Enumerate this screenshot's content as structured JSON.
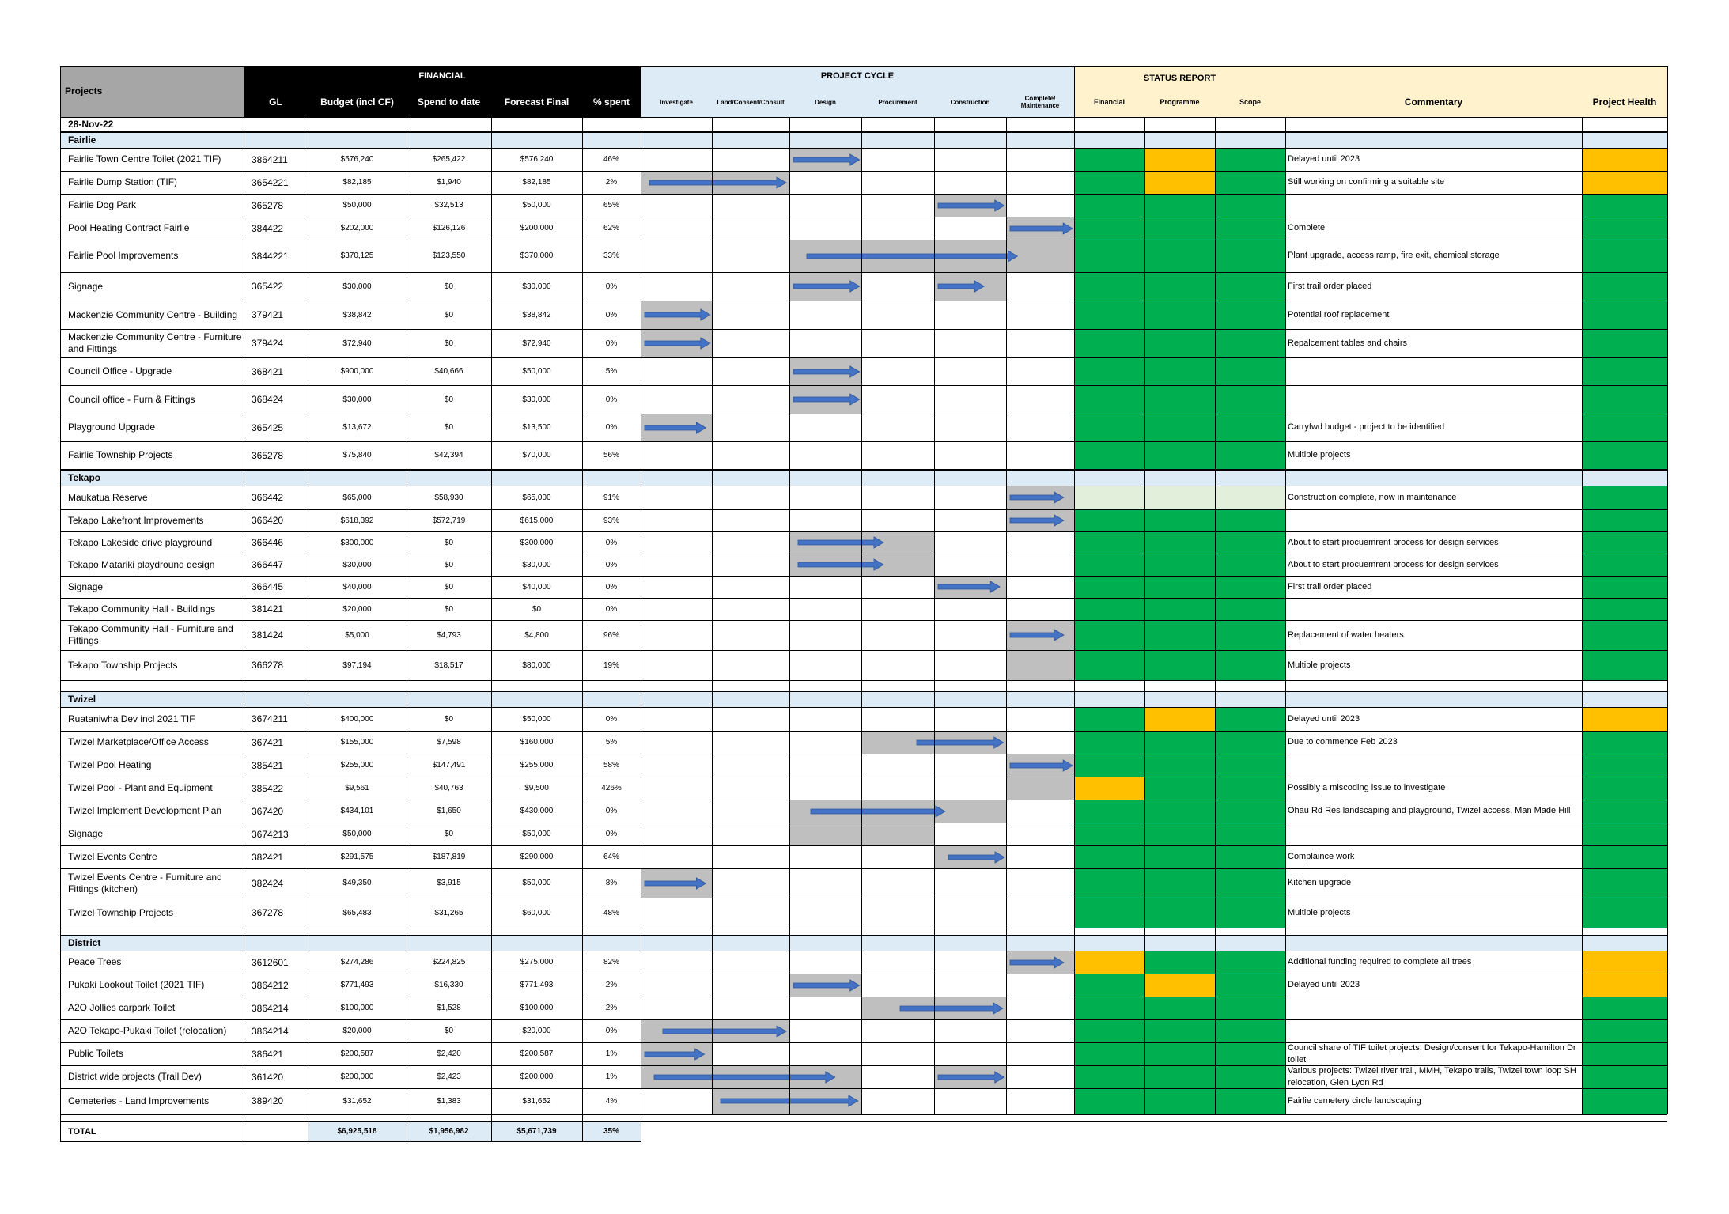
{
  "header": {
    "projects": "Projects",
    "financial": "FINANCIAL",
    "gl": "GL",
    "budget": "Budget (incl CF)",
    "spend": "Spend to date",
    "forecast": "Forecast Final",
    "pct": "% spent",
    "project_cycle": "PROJECT CYCLE",
    "stages": [
      "Investigate",
      "Land/Consent/Consult",
      "Design",
      "Procurement",
      "Construction",
      "Complete/ Maintenance"
    ],
    "status_report": "STATUS REPORT",
    "status_cols": [
      "Financial",
      "Programme",
      "Scope"
    ],
    "commentary": "Commentary",
    "health": "Project Health"
  },
  "date": "28-Nov-22",
  "colors": {
    "green": "#00b050",
    "amber": "#ffc000",
    "lightgreen": "#e2efda",
    "grey": "#bfbfbf",
    "group_band": "#ddebf7",
    "cycle_header": "#ddebf7",
    "status_header": "#fff2cc",
    "arrow": "#4472c4",
    "black": "#000000"
  },
  "groups": [
    {
      "name": "Fairlie",
      "rows": [
        {
          "project": "Fairlie Town Centre Toilet (2021 TIF)",
          "gl": "3864211",
          "budget": "$576,240",
          "spend": "$265,422",
          "forecast": "$576,240",
          "pct": "46%",
          "stage_start": 2,
          "stage_end": 3,
          "progress": 0.98,
          "status": [
            "green",
            "amber",
            "green"
          ],
          "comment": "Delayed until 2023",
          "health": "amber"
        },
        {
          "project": "Fairlie Dump Station (TIF)",
          "gl": "3654221",
          "budget": "$82,185",
          "spend": "$1,940",
          "forecast": "$82,185",
          "pct": "2%",
          "stage_start": 0,
          "stage_end": 2,
          "progress": 0.98,
          "status": [
            "green",
            "amber",
            "green"
          ],
          "comment": "Still working on confirming a suitable site",
          "health": "amber"
        },
        {
          "project": "Fairlie Dog Park",
          "gl": "365278",
          "budget": "$50,000",
          "spend": "$32,513",
          "forecast": "$50,000",
          "pct": "65%",
          "stage_start": 4,
          "stage_end": 5,
          "progress": 0.98,
          "status": [
            "green",
            "green",
            "green"
          ],
          "comment": "",
          "health": "green"
        },
        {
          "project": "Pool Heating Contract Fairlie",
          "gl": "384422",
          "budget": "$202,000",
          "spend": "$126,126",
          "forecast": "$200,000",
          "pct": "62%",
          "stage_start": 5,
          "stage_end": 6,
          "progress": 0.98,
          "status": [
            "green",
            "green",
            "green"
          ],
          "comment": "Complete",
          "health": "green"
        },
        {
          "project": "Fairlie Pool Improvements",
          "gl": "3844221",
          "budget": "$370,125",
          "spend": "$123,550",
          "forecast": "$370,000",
          "pct": "33%",
          "stage_start": 2,
          "stage_end": 6,
          "progress": 0.8,
          "status": [
            "green",
            "green",
            "green"
          ],
          "comment": "Plant upgrade, access ramp, fire exit, chemical storage",
          "health": "green"
        },
        {
          "project": "Signage",
          "gl": "365422",
          "budget": "$30,000",
          "spend": "$0",
          "forecast": "$30,000",
          "pct": "0%",
          "stage_start": 2,
          "stage_end": 3,
          "progress": 0.98,
          "stage_start2": 4,
          "stage_end2": 5,
          "progress2": 0.7,
          "status": [
            "green",
            "green",
            "green"
          ],
          "comment": "First trail order placed",
          "health": "green"
        },
        {
          "project": "Mackenzie Community Centre - Building",
          "gl": "379421",
          "budget": "$38,842",
          "spend": "$0",
          "forecast": "$38,842",
          "pct": "0%",
          "stage_start": 0,
          "stage_end": 1,
          "progress": 0.98,
          "status": [
            "green",
            "green",
            "green"
          ],
          "comment": "Potential roof replacement",
          "health": "green"
        },
        {
          "project": "Mackenzie Community Centre - Furniture and Fittings",
          "gl": "379424",
          "budget": "$72,940",
          "spend": "$0",
          "forecast": "$72,940",
          "pct": "0%",
          "stage_start": 0,
          "stage_end": 1,
          "progress": 0.98,
          "status": [
            "green",
            "green",
            "green"
          ],
          "comment": "Repalcement tables and chairs",
          "health": "green"
        },
        {
          "project": "Council Office - Upgrade",
          "gl": "368421",
          "budget": "$900,000",
          "spend": "$40,666",
          "forecast": "$50,000",
          "pct": "5%",
          "stage_start": 2,
          "stage_end": 3,
          "progress": 0.98,
          "status": [
            "green",
            "green",
            "green"
          ],
          "comment": "",
          "health": "green"
        },
        {
          "project": "Council office - Furn & Fittings",
          "gl": "368424",
          "budget": "$30,000",
          "spend": "$0",
          "forecast": "$30,000",
          "pct": "0%",
          "stage_start": 2,
          "stage_end": 3,
          "progress": 0.98,
          "status": [
            "green",
            "green",
            "green"
          ],
          "comment": "",
          "health": "green"
        },
        {
          "project": "Playground Upgrade",
          "gl": "365425",
          "budget": "$13,672",
          "spend": "$0",
          "forecast": "$13,500",
          "pct": "0%",
          "stage_start": 0,
          "stage_end": 1,
          "progress": 0.92,
          "status": [
            "green",
            "green",
            "green"
          ],
          "comment": "Carryfwd budget - project to be identified",
          "health": "green"
        },
        {
          "project": "Fairlie Township Projects",
          "gl": "365278",
          "budget": "$75,840",
          "spend": "$42,394",
          "forecast": "$70,000",
          "pct": "56%",
          "status": [
            "green",
            "green",
            "green"
          ],
          "comment": "Multiple projects",
          "health": "green"
        }
      ]
    },
    {
      "name": "Tekapo",
      "rows": [
        {
          "project": "Maukatua Reserve",
          "gl": "366442",
          "budget": "$65,000",
          "spend": "$58,930",
          "forecast": "$65,000",
          "pct": "91%",
          "stage_start": 5,
          "stage_end": 6,
          "progress": 0.85,
          "status": [
            "lightgreen",
            "lightgreen",
            "lightgreen"
          ],
          "comment": "Construction complete, now in maintenance",
          "health": "green"
        },
        {
          "project": "Tekapo Lakefront Improvements",
          "gl": "366420",
          "budget": "$618,392",
          "spend": "$572,719",
          "forecast": "$615,000",
          "pct": "93%",
          "stage_start": 5,
          "stage_end": 6,
          "progress": 0.85,
          "status": [
            "green",
            "green",
            "green"
          ],
          "comment": "",
          "health": "green"
        },
        {
          "project": "Tekapo Lakeside drive playground",
          "gl": "366446",
          "budget": "$300,000",
          "spend": "$0",
          "forecast": "$300,000",
          "pct": "0%",
          "stage_start": 2,
          "stage_end": 4,
          "progress": 0.65,
          "status": [
            "green",
            "green",
            "green"
          ],
          "comment": "About to start procuemrent process for design services",
          "health": "green"
        },
        {
          "project": "Tekapo Matariki playdround design",
          "gl": "366447",
          "budget": "$30,000",
          "spend": "$0",
          "forecast": "$30,000",
          "pct": "0%",
          "stage_start": 2,
          "stage_end": 4,
          "progress": 0.65,
          "status": [
            "green",
            "green",
            "green"
          ],
          "comment": "About to start procuemrent process for design services",
          "health": "green"
        },
        {
          "project": "Signage",
          "gl": "366445",
          "budget": "$40,000",
          "spend": "$0",
          "forecast": "$40,000",
          "pct": "0%",
          "stage_start": 4,
          "stage_end": 5,
          "progress": 0.92,
          "status": [
            "green",
            "green",
            "green"
          ],
          "comment": "First trail order placed",
          "health": "green"
        },
        {
          "project": "Tekapo Community Hall - Buildings",
          "gl": "381421",
          "budget": "$20,000",
          "spend": "$0",
          "forecast": "$0",
          "pct": "0%",
          "status": [
            "green",
            "green",
            "green"
          ],
          "comment": "",
          "health": "green"
        },
        {
          "project": "Tekapo Community Hall - Furniture and Fittings",
          "gl": "381424",
          "budget": "$5,000",
          "spend": "$4,793",
          "forecast": "$4,800",
          "pct": "96%",
          "stage_start": 5,
          "stage_end": 6,
          "progress": 0.85,
          "status": [
            "green",
            "green",
            "green"
          ],
          "comment": "Replacement of water heaters",
          "health": "green"
        },
        {
          "project": "Tekapo Township Projects",
          "gl": "366278",
          "budget": "$97,194",
          "spend": "$18,517",
          "forecast": "$80,000",
          "pct": "19%",
          "stage_start": 5,
          "stage_end": 6,
          "progress": 0,
          "status": [
            "green",
            "green",
            "green"
          ],
          "comment": "Multiple projects",
          "health": "green"
        }
      ]
    },
    {
      "name": "Twizel",
      "rows": [
        {
          "project": "Ruataniwha Dev incl 2021 TIF",
          "gl": "3674211",
          "budget": "$400,000",
          "spend": "$0",
          "forecast": "$50,000",
          "pct": "0%",
          "status": [
            "green",
            "amber",
            "green"
          ],
          "comment": "Delayed until 2023",
          "health": "amber"
        },
        {
          "project": "Twizel Marketplace/Office Access",
          "gl": "367421",
          "budget": "$155,000",
          "spend": "$7,598",
          "forecast": "$160,000",
          "pct": "5%",
          "stage_start": 3,
          "stage_end": 5,
          "progress": 0.98,
          "arrow_from": 0.38,
          "status": [
            "green",
            "green",
            "green"
          ],
          "comment": "Due to commence Feb 2023",
          "health": "green"
        },
        {
          "project": "Twizel Pool Heating",
          "gl": "385421",
          "budget": "$255,000",
          "spend": "$147,491",
          "forecast": "$255,000",
          "pct": "58%",
          "stage_start": 5,
          "stage_end": 6,
          "progress": 0.98,
          "status": [
            "green",
            "green",
            "green"
          ],
          "comment": "",
          "health": "green"
        },
        {
          "project": "Twizel Pool - Plant and Equipment",
          "gl": "385422",
          "budget": "$9,561",
          "spend": "$40,763",
          "forecast": "$9,500",
          "pct": "426%",
          "stage_start": 5,
          "stage_end": 6,
          "progress": 0,
          "status": [
            "amber",
            "green",
            "green"
          ],
          "comment": "Possibly a miscoding issue to investigate",
          "health": "green"
        },
        {
          "project": "Twizel Implement Development Plan",
          "gl": "367420",
          "budget": "$434,101",
          "spend": "$1,650",
          "forecast": "$430,000",
          "pct": "0%",
          "stage_start": 2,
          "stage_end": 5,
          "progress": 0.72,
          "arrow_from": 0.1,
          "status": [
            "green",
            "green",
            "green"
          ],
          "comment": "Ohau Rd Res landscaping and playground, Twizel access, Man Made Hill",
          "health": "green"
        },
        {
          "project": "Signage",
          "gl": "3674213",
          "budget": "$50,000",
          "spend": "$0",
          "forecast": "$50,000",
          "pct": "0%",
          "stage_start": 2,
          "stage_end": 4,
          "progress": 0,
          "status": [
            "green",
            "green",
            "green"
          ],
          "comment": "",
          "health": "green"
        },
        {
          "project": "Twizel Events Centre",
          "gl": "382421",
          "budget": "$291,575",
          "spend": "$187,819",
          "forecast": "$290,000",
          "pct": "64%",
          "stage_start": 4,
          "stage_end": 5,
          "progress": 0.98,
          "arrow_from": 0.2,
          "status": [
            "green",
            "green",
            "green"
          ],
          "comment": "Complaince work",
          "health": "green"
        },
        {
          "project": "Twizel Events Centre - Furniture and Fittings (kitchen)",
          "gl": "382424",
          "budget": "$49,350",
          "spend": "$3,915",
          "forecast": "$50,000",
          "pct": "8%",
          "stage_start": 0,
          "stage_end": 1,
          "progress": 0.92,
          "status": [
            "green",
            "green",
            "green"
          ],
          "comment": "Kitchen upgrade",
          "health": "green"
        },
        {
          "project": "Twizel Township Projects",
          "gl": "367278",
          "budget": "$65,483",
          "spend": "$31,265",
          "forecast": "$60,000",
          "pct": "48%",
          "status": [
            "green",
            "green",
            "green"
          ],
          "comment": "Multiple projects",
          "health": "green"
        }
      ]
    },
    {
      "name": "District",
      "rows": [
        {
          "project": "Peace Trees",
          "gl": "3612601",
          "budget": "$274,286",
          "spend": "$224,825",
          "forecast": "$275,000",
          "pct": "82%",
          "stage_start": 5,
          "stage_end": 6,
          "progress": 0.85,
          "status": [
            "amber",
            "green",
            "green"
          ],
          "comment": "Additional funding required to complete all trees",
          "health": "amber"
        },
        {
          "project": "Pukaki Lookout Toilet (2021 TIF)",
          "gl": "3864212",
          "budget": "$771,493",
          "spend": "$16,330",
          "forecast": "$771,493",
          "pct": "2%",
          "stage_start": 2,
          "stage_end": 3,
          "progress": 0.98,
          "status": [
            "green",
            "amber",
            "green"
          ],
          "comment": "Delayed until 2023",
          "health": "amber"
        },
        {
          "project": "A2O Jollies carpark Toilet",
          "gl": "3864214",
          "budget": "$100,000",
          "spend": "$1,528",
          "forecast": "$100,000",
          "pct": "2%",
          "stage_start": 3,
          "stage_end": 5,
          "progress": 0.98,
          "arrow_from": 0.27,
          "status": [
            "green",
            "green",
            "green"
          ],
          "comment": "",
          "health": "green"
        },
        {
          "project": "A2O Tekapo-Pukaki Toilet (relocation)",
          "gl": "3864214",
          "budget": "$20,000",
          "spend": "$0",
          "forecast": "$20,000",
          "pct": "0%",
          "stage_start": 0,
          "stage_end": 2,
          "progress": 0.98,
          "arrow_from": 0.15,
          "status": [
            "green",
            "green",
            "green"
          ],
          "comment": "",
          "health": "green"
        },
        {
          "project": "Public Toilets",
          "gl": "386421",
          "budget": "$200,587",
          "spend": "$2,420",
          "forecast": "$200,587",
          "pct": "1%",
          "stage_start": 0,
          "stage_end": 1,
          "progress": 0.9,
          "status": [
            "green",
            "green",
            "green"
          ],
          "comment": "Council share of TIF toilet projects; Design/consent for Tekapo-Hamilton Dr toilet",
          "health": "green"
        },
        {
          "project": "District wide projects (Trail Dev)",
          "gl": "361420",
          "budget": "$200,000",
          "spend": "$2,423",
          "forecast": "$200,000",
          "pct": "1%",
          "stage_start": 0,
          "stage_end": 3,
          "progress": 0.88,
          "stage_start2": 4,
          "stage_end2": 5,
          "progress2": 0.98,
          "status": [
            "green",
            "green",
            "green"
          ],
          "comment": "Various projects: Twizel river trail, MMH, Tekapo trails, Twizel town loop SH relocation, Glen Lyon Rd",
          "health": "green"
        },
        {
          "project": "Cemeteries - Land Improvements",
          "gl": "389420",
          "budget": "$31,652",
          "spend": "$1,383",
          "forecast": "$31,652",
          "pct": "4%",
          "stage_start": 1,
          "stage_end": 3,
          "progress": 0.98,
          "status": [
            "green",
            "green",
            "green"
          ],
          "comment": "Fairlie cemetery circle landscaping",
          "health": "green"
        }
      ]
    }
  ],
  "total": {
    "label": "TOTAL",
    "budget": "$6,925,518",
    "spend": "$1,956,982",
    "forecast": "$5,671,739",
    "pct": "35%"
  }
}
